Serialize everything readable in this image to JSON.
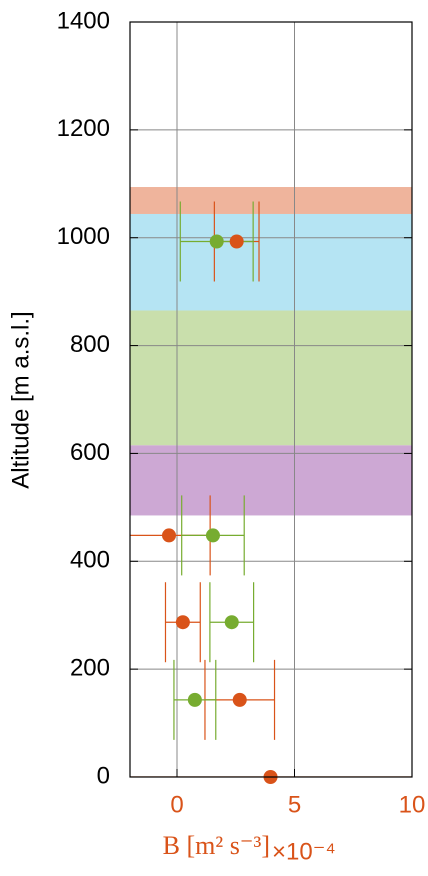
{
  "chart_data": {
    "type": "errorbar",
    "y_label": "Altitude [m a.s.l.]",
    "x_label": "B [m² s⁻³]",
    "x_multiplier": "×10⁻⁴",
    "xlim": [
      -2,
      10
    ],
    "xticks": [
      0,
      5,
      10
    ],
    "ylim": [
      0,
      1400
    ],
    "yticks": [
      0,
      200,
      400,
      600,
      800,
      1000,
      1200,
      1400
    ],
    "grid": true,
    "tick_label_color_x": "#d95319",
    "bands": [
      {
        "ymin": 1044,
        "ymax": 1094,
        "color": "#efb49c"
      },
      {
        "ymin": 865,
        "ymax": 1044,
        "color": "#b5e4f3"
      },
      {
        "ymin": 615,
        "ymax": 865,
        "color": "#c9dfac"
      },
      {
        "ymin": 485,
        "ymax": 615,
        "color": "#cda8d4"
      }
    ],
    "series": [
      {
        "color": "#d95319",
        "x": [
          2.54,
          -0.34,
          0.25,
          2.67,
          3.98
        ],
        "y": [
          993,
          448,
          287,
          143,
          0
        ],
        "xerr": [
          0.95,
          1.75,
          0.74,
          1.48,
          6.5
        ]
      },
      {
        "color": "#77ac30",
        "x": [
          1.69,
          1.53,
          2.33,
          0.76
        ],
        "y": [
          993,
          448,
          287,
          143
        ],
        "xerr": [
          1.55,
          1.33,
          0.93,
          0.89
        ]
      }
    ]
  }
}
